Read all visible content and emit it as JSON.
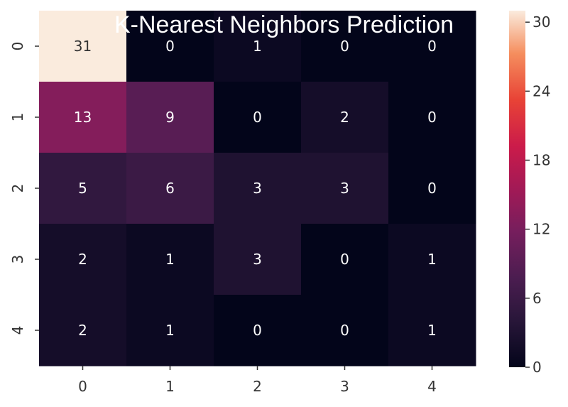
{
  "chart_data": {
    "type": "heatmap",
    "title": "K-Nearest Neighbors Prediction",
    "xlabel": "",
    "ylabel": "",
    "x_categories": [
      "0",
      "1",
      "2",
      "3",
      "4"
    ],
    "y_categories": [
      "0",
      "1",
      "2",
      "3",
      "4"
    ],
    "values": [
      [
        31,
        0,
        1,
        0,
        0
      ],
      [
        13,
        9,
        0,
        2,
        0
      ],
      [
        5,
        6,
        3,
        3,
        0
      ],
      [
        2,
        1,
        3,
        0,
        1
      ],
      [
        2,
        1,
        0,
        0,
        1
      ]
    ],
    "colorbar": {
      "min": 0,
      "max": 31,
      "ticks": [
        "0",
        "6",
        "12",
        "18",
        "24",
        "30"
      ],
      "tick_values": [
        0,
        6,
        12,
        18,
        24,
        30
      ]
    },
    "colormap": "rocket",
    "annotated": true,
    "grid": false
  }
}
